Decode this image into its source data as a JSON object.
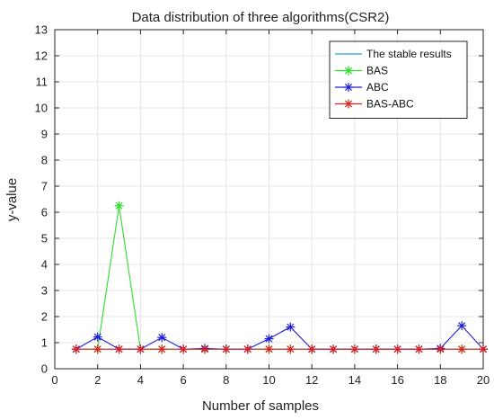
{
  "chart_data": {
    "type": "line",
    "title": "Data distribution of three algorithms(CSR2)",
    "xlabel": "Number of samples",
    "ylabel": "y-value",
    "xlim": [
      0,
      20
    ],
    "ylim": [
      0,
      13
    ],
    "xticks": [
      0,
      2,
      4,
      6,
      8,
      10,
      12,
      14,
      16,
      18,
      20
    ],
    "yticks": [
      0,
      1,
      2,
      3,
      4,
      5,
      6,
      7,
      8,
      9,
      10,
      11,
      12,
      13
    ],
    "grid": true,
    "legend_position": "top-right",
    "x": [
      1,
      2,
      3,
      4,
      5,
      6,
      7,
      8,
      9,
      10,
      11,
      12,
      13,
      14,
      15,
      16,
      17,
      18,
      19,
      20
    ],
    "series": [
      {
        "name": "The stable results",
        "color": "#2f9ad3",
        "marker": "none",
        "values": [
          0.75,
          0.75,
          0.75,
          0.75,
          0.75,
          0.75,
          0.75,
          0.75,
          0.75,
          0.75,
          0.75,
          0.75,
          0.75,
          0.75,
          0.75,
          0.75,
          0.75,
          0.75,
          0.75,
          0.75
        ]
      },
      {
        "name": "BAS",
        "color": "#2edc2e",
        "marker": "star",
        "values": [
          0.75,
          0.75,
          6.25,
          0.75,
          0.75,
          0.75,
          0.75,
          0.75,
          0.75,
          0.75,
          0.75,
          0.75,
          0.75,
          0.75,
          0.75,
          0.75,
          0.75,
          0.75,
          0.75,
          0.75
        ]
      },
      {
        "name": "ABC",
        "color": "#1f1fd6",
        "marker": "star",
        "values": [
          0.75,
          1.22,
          0.75,
          0.75,
          1.2,
          0.75,
          0.78,
          0.75,
          0.75,
          1.15,
          1.6,
          0.75,
          0.75,
          0.75,
          0.75,
          0.75,
          0.75,
          0.78,
          1.65,
          0.75
        ]
      },
      {
        "name": "BAS-ABC",
        "color": "#e0201f",
        "marker": "star",
        "values": [
          0.75,
          0.75,
          0.75,
          0.75,
          0.75,
          0.75,
          0.75,
          0.75,
          0.75,
          0.75,
          0.75,
          0.75,
          0.75,
          0.75,
          0.75,
          0.75,
          0.75,
          0.75,
          0.75,
          0.75
        ]
      }
    ]
  }
}
